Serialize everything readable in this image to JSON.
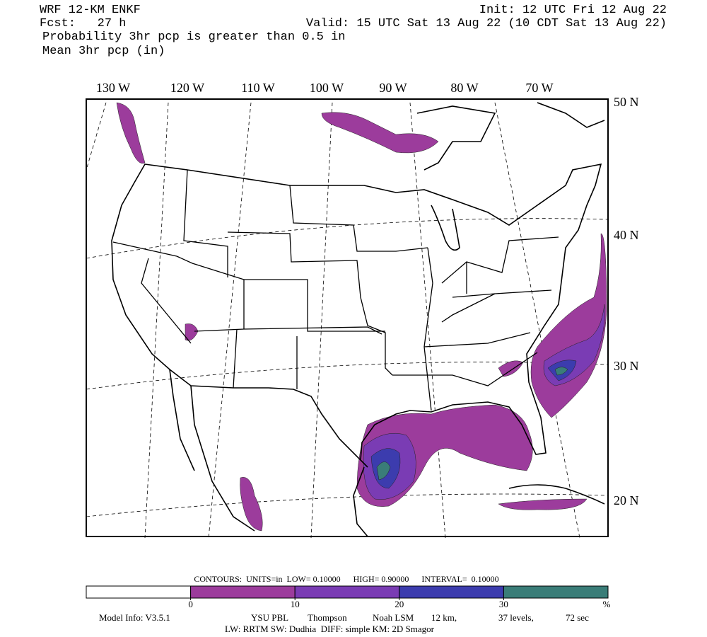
{
  "header": {
    "model": "WRF 12-KM ENKF",
    "forecast": "Fcst:   27 h",
    "field_1": "Probability 3hr pcp is greater than 0.5 in",
    "field_2": "Mean 3hr pcp (in)",
    "init": "Init: 12 UTC Fri 12 Aug 22",
    "valid": "Valid: 15 UTC Sat 13 Aug 22 (10 CDT Sat 13 Aug 22)"
  },
  "map": {
    "longitude_labels": [
      "130 W",
      "120 W",
      "110 W",
      "100 W",
      "90 W",
      "80 W",
      "70 W"
    ],
    "latitude_labels": [
      "50 N",
      "40 N",
      "30 N",
      "20 N"
    ]
  },
  "legend": {
    "contours": "CONTOURS:  UNITS=in  LOW= 0.10000      HIGH= 0.90000      INTERVAL=  0.10000",
    "colors": [
      "#ffffff",
      "#9c3c9c",
      "#7a3cb4",
      "#3c3cae",
      "#3a7d78"
    ],
    "ticks": [
      0,
      10,
      20,
      30
    ],
    "unit": "%"
  },
  "footer": {
    "line_1": [
      "Model Info: V3.5.1",
      "YSU PBL",
      "Thompson",
      "Noah LSM",
      "12 km,",
      "37 levels,",
      "72 sec"
    ],
    "line_2": "LW: RRTM SW: Dudhia  DIFF: simple KM: 2D Smagor"
  }
}
